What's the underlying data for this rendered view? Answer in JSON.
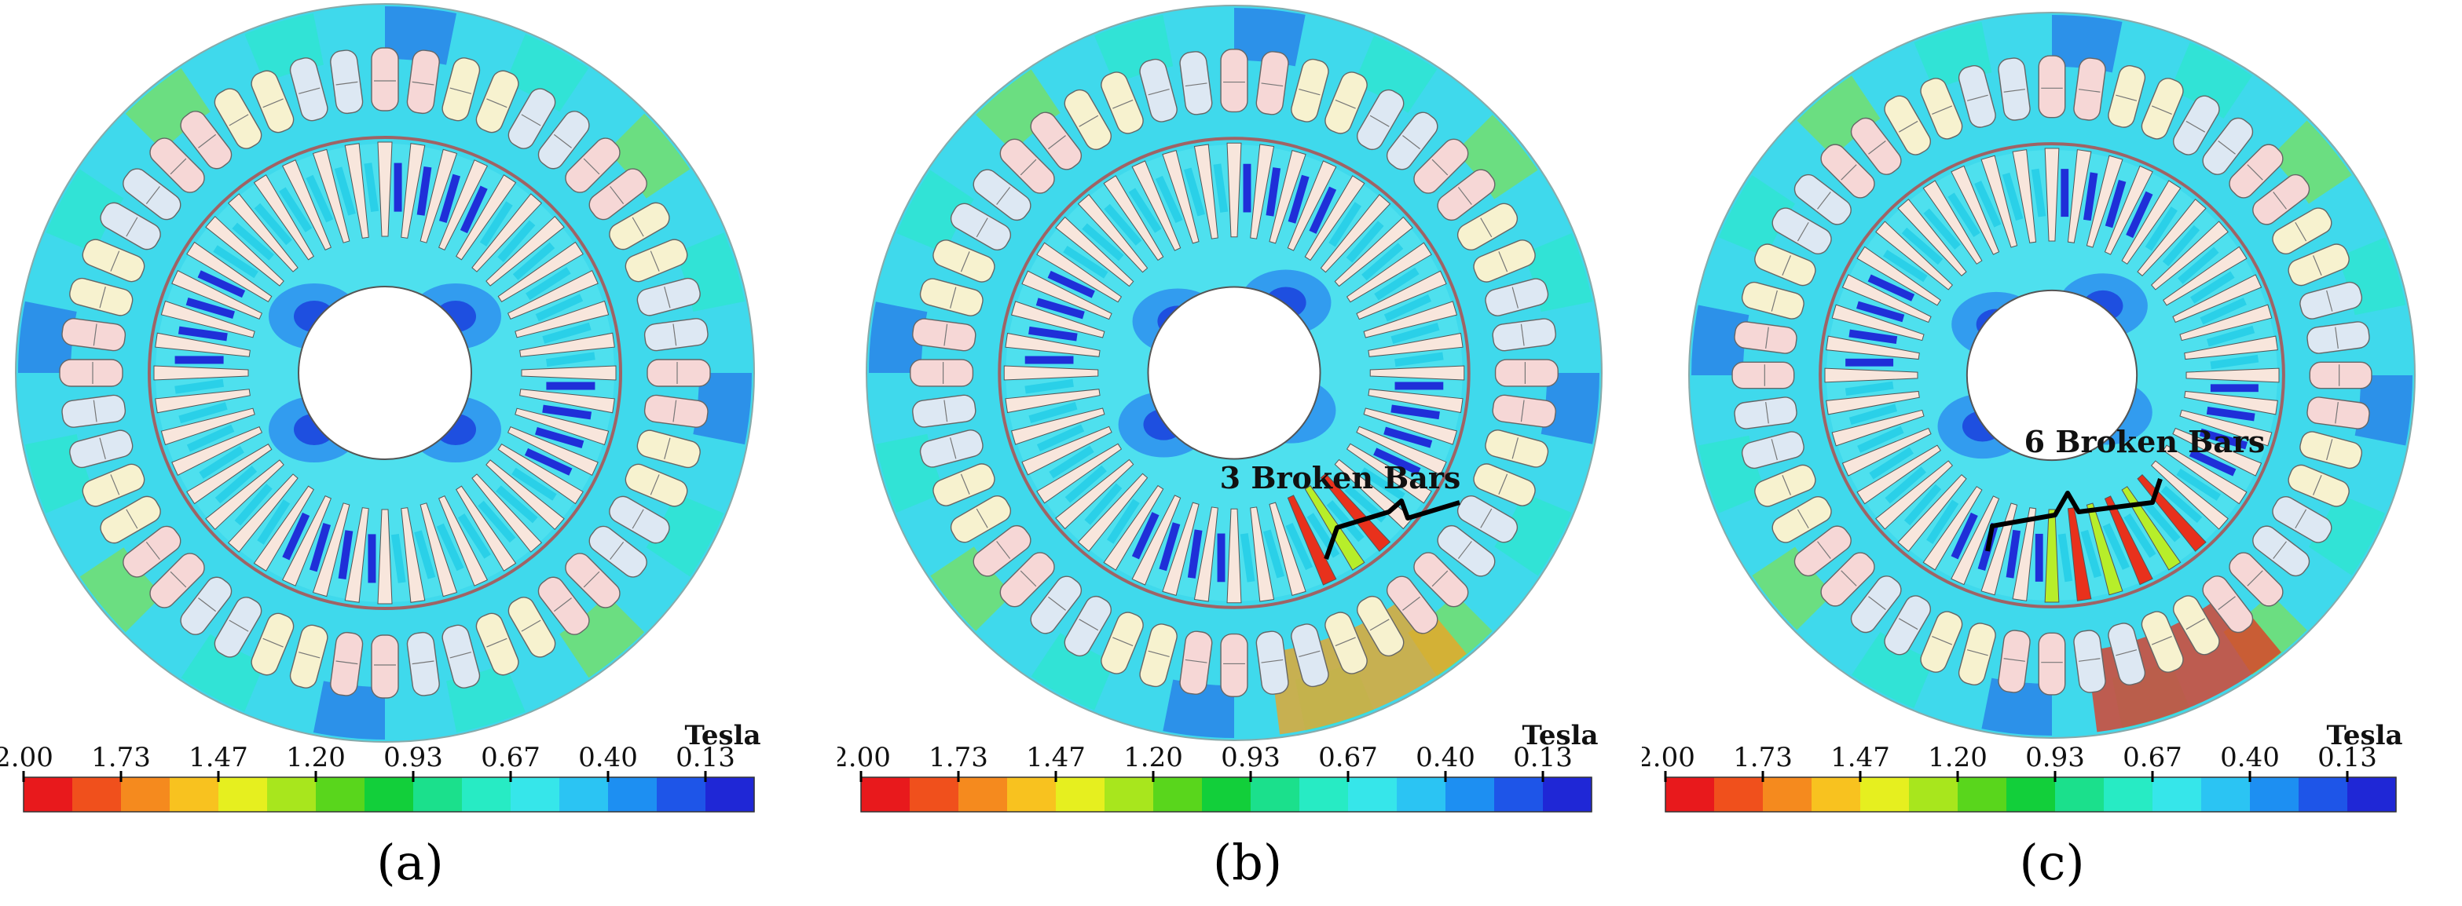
{
  "colorbar": {
    "unit": "Tesla",
    "ticks": [
      "2.00",
      "1.73",
      "1.47",
      "1.20",
      "0.93",
      "0.67",
      "0.40",
      "0.13"
    ],
    "colors": [
      "#e8191c",
      "#f0501c",
      "#f58a1e",
      "#f8c21f",
      "#e6ef1f",
      "#a8e61d",
      "#59d61c",
      "#12cf3a",
      "#1be08c",
      "#27ebc4",
      "#36e6ea",
      "#2bc4f3",
      "#1d8ff2",
      "#1e55e8",
      "#1f27d6"
    ]
  },
  "panels": [
    {
      "id": "a",
      "label": "(a)",
      "annotation": "",
      "broken_bars": 0
    },
    {
      "id": "b",
      "label": "(b)",
      "annotation": "3 Broken Bars",
      "broken_bars": 3
    },
    {
      "id": "c",
      "label": "(c)",
      "annotation": "6 Broken Bars",
      "broken_bars": 6
    }
  ],
  "colors": {
    "stator_field": "#3fd9ec",
    "rotor_field": "#4ee0ee",
    "rotor_low": "#2e8fee",
    "rotor_core": "#1e4fe0",
    "tooth_high": "#b7ee2a",
    "slot_fill": "#f5e8dc",
    "rotor_bar": "#f8e6dc",
    "rotor_slot_dark": "#1f2fd8",
    "hot": "#e8311c",
    "warm": "#f5a21e"
  }
}
